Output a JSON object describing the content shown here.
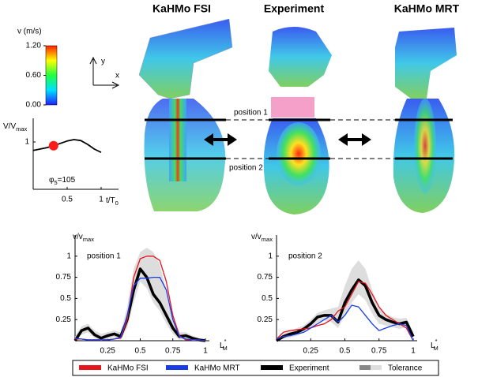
{
  "figure": {
    "panel_titles": [
      "KaHMo FSI",
      "Experiment",
      "KaHMo MRT"
    ],
    "axis_y": "y",
    "axis_x": "x",
    "position_labels": [
      "position 1",
      "position 2"
    ],
    "colorbar": {
      "label": "v (m/s)",
      "lim": [
        0,
        1.2
      ],
      "ticks": [
        {
          "value": 0,
          "label": "0.00"
        },
        {
          "value": 0.6,
          "label": "0.60"
        },
        {
          "value": 1.2,
          "label": "1.20"
        }
      ],
      "colors": [
        "#2020ff",
        "#00e0ff",
        "#20ff40",
        "#ffff00",
        "#ff2000"
      ]
    }
  },
  "chart_data": [
    {
      "type": "line",
      "annotation": "position 1",
      "ylabel": "v/v",
      "ylabel_sub": "max",
      "xlabel": "L",
      "xlabel_sup": "*",
      "xlabel_sub": "M",
      "xlim": [
        0,
        1
      ],
      "ylim": [
        0,
        1.25
      ],
      "xticks": [
        0.25,
        0.5,
        0.75,
        1
      ],
      "yticks": [
        0.25,
        0.5,
        0.75,
        1
      ],
      "x": [
        0,
        0.05,
        0.1,
        0.15,
        0.2,
        0.25,
        0.3,
        0.35,
        0.4,
        0.45,
        0.5,
        0.55,
        0.6,
        0.65,
        0.7,
        0.75,
        0.8,
        0.85,
        0.9,
        0.95,
        1
      ],
      "series": [
        {
          "name": "KaHMo FSI",
          "color": "#e8141c",
          "values": [
            0.02,
            0.02,
            0.01,
            0.01,
            0.01,
            0.01,
            0.02,
            0.03,
            0.25,
            0.75,
            0.97,
            1.0,
            1.0,
            0.95,
            0.7,
            0.3,
            0.06,
            0.01,
            0.01,
            0.01,
            0.0
          ]
        },
        {
          "name": "KaHMo MRT",
          "color": "#1a3ce8",
          "values": [
            0.03,
            0.02,
            0.01,
            0.01,
            0.01,
            0.01,
            0.02,
            0.04,
            0.3,
            0.65,
            0.74,
            0.74,
            0.75,
            0.75,
            0.6,
            0.25,
            0.05,
            0.02,
            0.01,
            0.01,
            0.0
          ]
        },
        {
          "name": "Experiment",
          "color": "#000000",
          "values": [
            0.0,
            0.12,
            0.15,
            0.07,
            0.03,
            0.06,
            0.08,
            0.05,
            0.25,
            0.6,
            0.85,
            0.75,
            0.55,
            0.45,
            0.3,
            0.15,
            0.05,
            0.06,
            0.03,
            0.01,
            0.0
          ]
        },
        {
          "name": "Tolerance",
          "color": "#dddddd",
          "upper": [
            0.05,
            0.17,
            0.2,
            0.12,
            0.08,
            0.1,
            0.12,
            0.1,
            0.4,
            0.85,
            1.05,
            1.1,
            1.05,
            0.9,
            0.6,
            0.3,
            0.1,
            0.1,
            0.06,
            0.03,
            0.02
          ],
          "lower": [
            0,
            0.07,
            0.1,
            0.03,
            0,
            0.02,
            0.04,
            0.01,
            0.15,
            0.45,
            0.7,
            0.62,
            0.45,
            0.35,
            0.2,
            0.08,
            0.01,
            0.02,
            0,
            0,
            0
          ]
        }
      ]
    },
    {
      "type": "line",
      "annotation": "position 2",
      "ylabel": "v/v",
      "ylabel_sub": "max",
      "xlabel": "L",
      "xlabel_sup": "*",
      "xlabel_sub": "M",
      "xlim": [
        0,
        1
      ],
      "ylim": [
        0,
        1.25
      ],
      "xticks": [
        0.25,
        0.5,
        0.75,
        1
      ],
      "yticks": [
        0.25,
        0.5,
        0.75,
        1
      ],
      "x": [
        0,
        0.05,
        0.1,
        0.15,
        0.2,
        0.25,
        0.3,
        0.35,
        0.4,
        0.45,
        0.5,
        0.55,
        0.6,
        0.65,
        0.7,
        0.75,
        0.8,
        0.85,
        0.9,
        0.95,
        1
      ],
      "series": [
        {
          "name": "KaHMo FSI",
          "color": "#e8141c",
          "values": [
            0.02,
            0.1,
            0.12,
            0.13,
            0.14,
            0.15,
            0.18,
            0.2,
            0.25,
            0.35,
            0.4,
            0.55,
            0.7,
            0.68,
            0.55,
            0.4,
            0.3,
            0.25,
            0.2,
            0.15,
            0.0
          ]
        },
        {
          "name": "KaHMo MRT",
          "color": "#1a3ce8",
          "values": [
            0.02,
            0.05,
            0.06,
            0.08,
            0.1,
            0.15,
            0.2,
            0.25,
            0.3,
            0.22,
            0.3,
            0.42,
            0.4,
            0.3,
            0.2,
            0.12,
            0.15,
            0.18,
            0.2,
            0.18,
            0.0
          ]
        },
        {
          "name": "Experiment",
          "color": "#000000",
          "values": [
            0.0,
            0.05,
            0.08,
            0.1,
            0.14,
            0.2,
            0.28,
            0.3,
            0.3,
            0.22,
            0.45,
            0.6,
            0.72,
            0.65,
            0.45,
            0.3,
            0.25,
            0.22,
            0.2,
            0.22,
            0.05
          ]
        },
        {
          "name": "Tolerance",
          "color": "#dddddd",
          "upper": [
            0.03,
            0.08,
            0.12,
            0.15,
            0.18,
            0.25,
            0.33,
            0.36,
            0.38,
            0.4,
            0.65,
            0.85,
            0.95,
            0.85,
            0.6,
            0.4,
            0.32,
            0.28,
            0.26,
            0.27,
            0.1
          ],
          "lower": [
            0,
            0.02,
            0.04,
            0.06,
            0.1,
            0.15,
            0.22,
            0.24,
            0.22,
            0.15,
            0.3,
            0.45,
            0.55,
            0.48,
            0.32,
            0.2,
            0.18,
            0.16,
            0.14,
            0.16,
            0.01
          ]
        }
      ]
    },
    {
      "type": "line",
      "ylabel": "V/V",
      "ylabel_sub": "max",
      "xlabel": "t/T",
      "xlabel_sub": "0",
      "annotation": "φ",
      "annotation_sub": "5",
      "annotation_rest": "=105",
      "xlim": [
        0,
        1
      ],
      "ylim": [
        0,
        1.5
      ],
      "xticks": [
        0.5,
        1
      ],
      "yticks": [
        1
      ],
      "x": [
        0,
        0.1,
        0.2,
        0.3,
        0.4,
        0.5,
        0.6,
        0.7,
        0.8,
        0.9,
        1
      ],
      "series": [
        {
          "color": "#000000",
          "values": [
            0.82,
            0.85,
            0.88,
            0.92,
            0.97,
            1.02,
            1.05,
            1.03,
            0.95,
            0.85,
            0.78
          ]
        }
      ],
      "highlight": {
        "x": 0.3,
        "value": 0.92,
        "color": "#ff1a1a"
      }
    }
  ]
}
